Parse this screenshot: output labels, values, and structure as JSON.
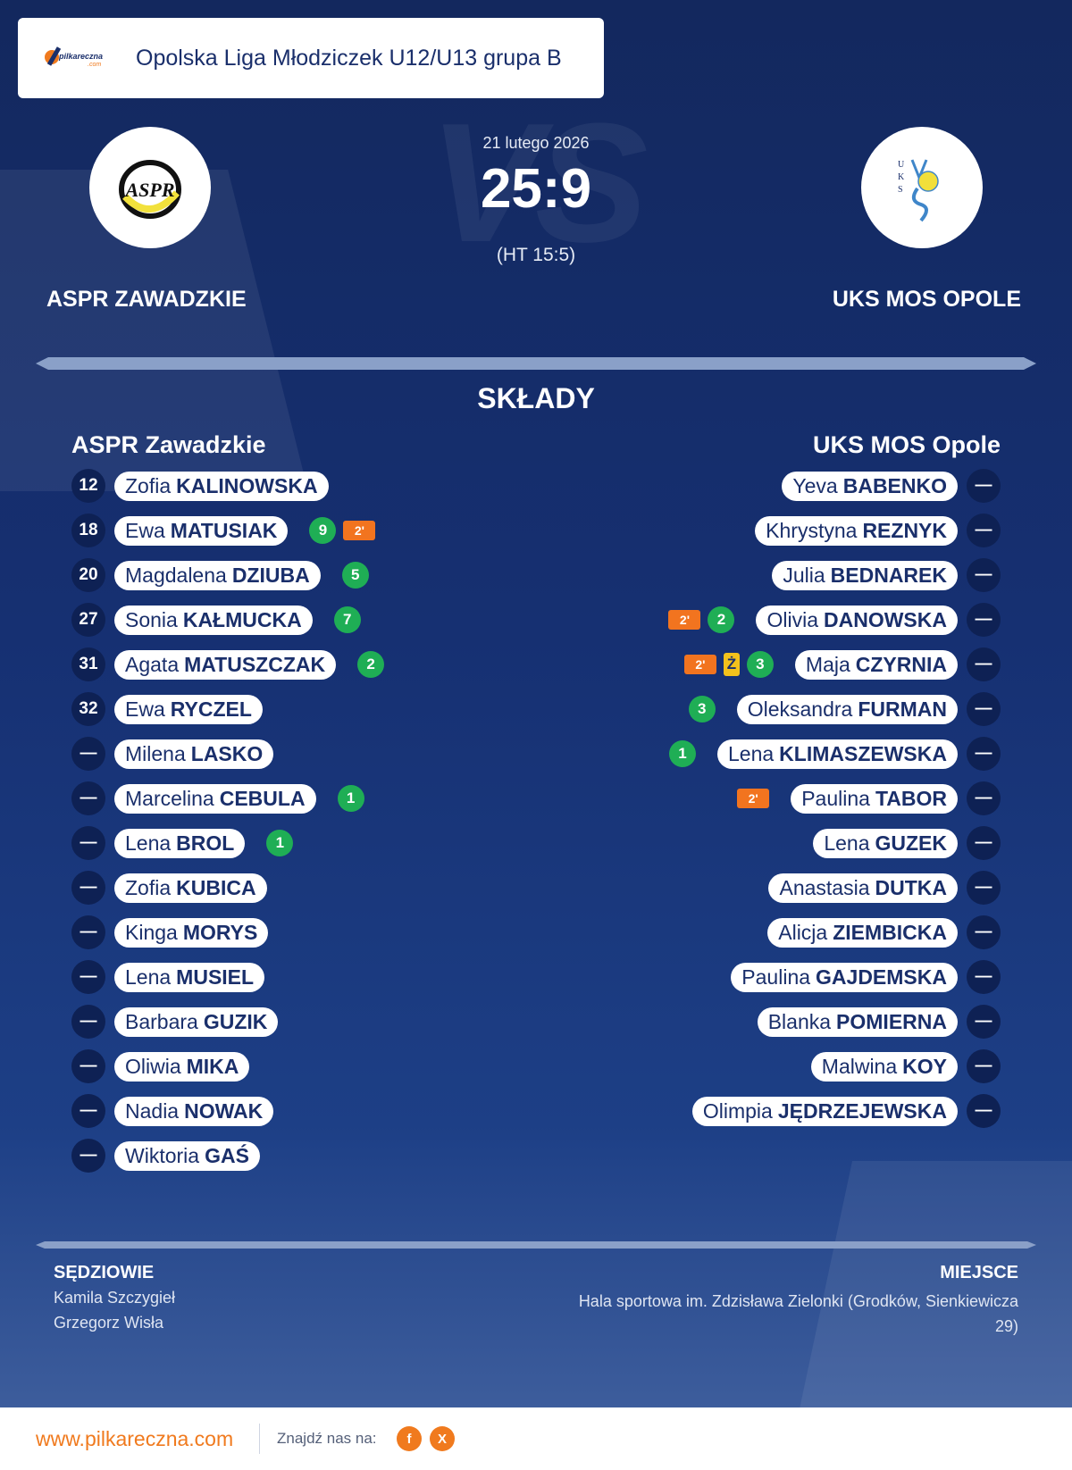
{
  "header": {
    "league": "Opolska Liga Młodziczek U12/U13 grupa B",
    "logo_text": "pilkareczna",
    "logo_sub": ".com"
  },
  "match": {
    "date": "21 lutego 2026",
    "score": "25:9",
    "halftime": "(HT 15:5)",
    "home_team": "ASPR ZAWADZKIE",
    "away_team": "UKS MOS OPOLE",
    "vs_watermark": "VS"
  },
  "section_title": "SKŁADY",
  "home_squad": {
    "title": "ASPR Zawadzkie",
    "players": [
      {
        "num": "12",
        "first": "Zofia",
        "last": "KALINOWSKA",
        "goals": "",
        "susp": "",
        "yellow": ""
      },
      {
        "num": "18",
        "first": "Ewa",
        "last": "MATUSIAK",
        "goals": "9",
        "susp": "2'",
        "yellow": ""
      },
      {
        "num": "20",
        "first": "Magdalena",
        "last": "DZIUBA",
        "goals": "5",
        "susp": "",
        "yellow": ""
      },
      {
        "num": "27",
        "first": "Sonia",
        "last": "KAŁMUCKA",
        "goals": "7",
        "susp": "",
        "yellow": ""
      },
      {
        "num": "31",
        "first": "Agata",
        "last": "MATUSZCZAK",
        "goals": "2",
        "susp": "",
        "yellow": ""
      },
      {
        "num": "32",
        "first": "Ewa",
        "last": "RYCZEL",
        "goals": "",
        "susp": "",
        "yellow": ""
      },
      {
        "num": "—",
        "first": "Milena",
        "last": "LASKO",
        "goals": "",
        "susp": "",
        "yellow": ""
      },
      {
        "num": "—",
        "first": "Marcelina",
        "last": "CEBULA",
        "goals": "1",
        "susp": "",
        "yellow": ""
      },
      {
        "num": "—",
        "first": "Lena",
        "last": "BROL",
        "goals": "1",
        "susp": "",
        "yellow": ""
      },
      {
        "num": "—",
        "first": "Zofia",
        "last": "KUBICA",
        "goals": "",
        "susp": "",
        "yellow": ""
      },
      {
        "num": "—",
        "first": "Kinga",
        "last": "MORYS",
        "goals": "",
        "susp": "",
        "yellow": ""
      },
      {
        "num": "—",
        "first": "Lena",
        "last": "MUSIEL",
        "goals": "",
        "susp": "",
        "yellow": ""
      },
      {
        "num": "—",
        "first": "Barbara",
        "last": "GUZIK",
        "goals": "",
        "susp": "",
        "yellow": ""
      },
      {
        "num": "—",
        "first": "Oliwia",
        "last": "MIKA",
        "goals": "",
        "susp": "",
        "yellow": ""
      },
      {
        "num": "—",
        "first": "Nadia",
        "last": "NOWAK",
        "goals": "",
        "susp": "",
        "yellow": ""
      },
      {
        "num": "—",
        "first": "Wiktoria",
        "last": "GAŚ",
        "goals": "",
        "susp": "",
        "yellow": ""
      }
    ]
  },
  "away_squad": {
    "title": "UKS MOS Opole",
    "players": [
      {
        "num": "—",
        "first": "Yeva",
        "last": "BABENKO",
        "goals": "",
        "susp": "",
        "yellow": ""
      },
      {
        "num": "—",
        "first": "Khrystyna",
        "last": "REZNYK",
        "goals": "",
        "susp": "",
        "yellow": ""
      },
      {
        "num": "—",
        "first": "Julia",
        "last": "BEDNAREK",
        "goals": "",
        "susp": "",
        "yellow": ""
      },
      {
        "num": "—",
        "first": "Olivia",
        "last": "DANOWSKA",
        "goals": "2",
        "susp": "2'",
        "yellow": ""
      },
      {
        "num": "—",
        "first": "Maja",
        "last": "CZYRNIA",
        "goals": "3",
        "susp": "2'",
        "yellow": "Ż"
      },
      {
        "num": "—",
        "first": "Oleksandra",
        "last": "FURMAN",
        "goals": "3",
        "susp": "",
        "yellow": ""
      },
      {
        "num": "—",
        "first": "Lena",
        "last": "KLIMASZEWSKA",
        "goals": "1",
        "susp": "",
        "yellow": ""
      },
      {
        "num": "—",
        "first": "Paulina",
        "last": "TABOR",
        "goals": "",
        "susp": "2'",
        "yellow": ""
      },
      {
        "num": "—",
        "first": "Lena",
        "last": "GUZEK",
        "goals": "",
        "susp": "",
        "yellow": ""
      },
      {
        "num": "—",
        "first": "Anastasia",
        "last": "DUTKA",
        "goals": "",
        "susp": "",
        "yellow": ""
      },
      {
        "num": "—",
        "first": "Alicja",
        "last": "ZIEMBICKA",
        "goals": "",
        "susp": "",
        "yellow": ""
      },
      {
        "num": "—",
        "first": "Paulina",
        "last": "GAJDEMSKA",
        "goals": "",
        "susp": "",
        "yellow": ""
      },
      {
        "num": "—",
        "first": "Blanka",
        "last": "POMIERNA",
        "goals": "",
        "susp": "",
        "yellow": ""
      },
      {
        "num": "—",
        "first": "Malwina",
        "last": "KOY",
        "goals": "",
        "susp": "",
        "yellow": ""
      },
      {
        "num": "—",
        "first": "Olimpia",
        "last": "JĘDRZEJEWSKA",
        "goals": "",
        "susp": "",
        "yellow": ""
      }
    ]
  },
  "officials": {
    "label": "SĘDZIOWIE",
    "names": [
      "Kamila Szczygieł",
      "Grzegorz Wisła"
    ]
  },
  "venue": {
    "label": "MIEJSCE",
    "text": "Hala sportowa im. Zdzisława Zielonki (Grodków, Sienkiewicza 29)"
  },
  "footer": {
    "site": "www.pilkareczna.com",
    "find_us": "Znajdź nas na:",
    "facebook": "f",
    "x": "X"
  },
  "colors": {
    "accent": "#f07a1e",
    "navy": "#1a2f6b",
    "goal": "#1fae55",
    "suspension": "#f2741f",
    "yellow_card": "#f3c21c"
  }
}
